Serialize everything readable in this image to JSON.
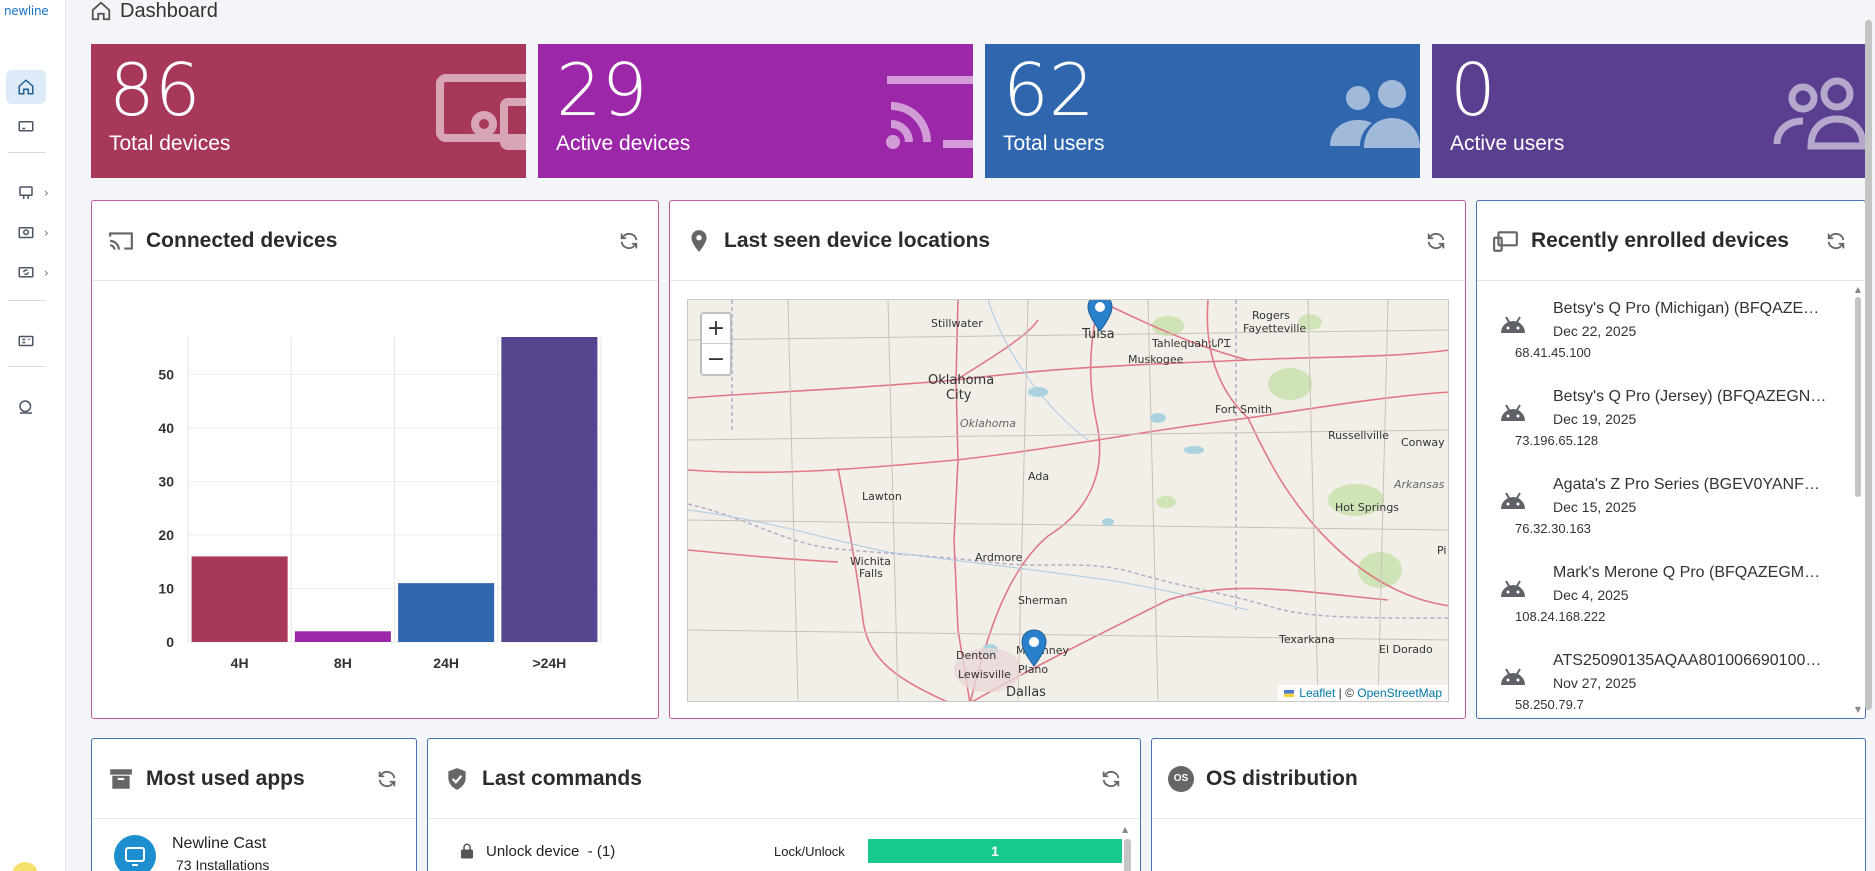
{
  "brand": {
    "logo_text": "newline"
  },
  "header": {
    "title": "Dashboard"
  },
  "kpis": [
    {
      "value": "86",
      "label": "Total devices",
      "color": "#a8385a",
      "icon": "display-screen-icon"
    },
    {
      "value": "29",
      "label": "Active devices",
      "color": "#9c27a8",
      "icon": "cast-icon"
    },
    {
      "value": "62",
      "label": "Total users",
      "color": "#2f66ae",
      "icon": "users-icon"
    },
    {
      "value": "0",
      "label": "Active users",
      "color": "#5a3f91",
      "icon": "users-outline-icon"
    }
  ],
  "connected": {
    "title": "Connected devices",
    "chart_data": {
      "type": "bar",
      "categories": [
        "4H",
        "8H",
        "24H",
        ">24H"
      ],
      "values": [
        16,
        2,
        11,
        57
      ],
      "colors": [
        "#a8385a",
        "#9c27a8",
        "#2f66ae",
        "#57448e"
      ],
      "yticks": [
        0,
        10,
        20,
        30,
        40,
        50
      ],
      "ylim": [
        0,
        57
      ],
      "grid": true,
      "title": "",
      "xlabel": "",
      "ylabel": ""
    }
  },
  "map": {
    "title": "Last seen device locations",
    "zoom_in": "+",
    "zoom_out": "−",
    "attrib_leaflet": "Leaflet",
    "attrib_sep": "| ©",
    "attrib_osm": "OpenStreetMap",
    "cities": {
      "stillwater": "Stillwater",
      "tulsa": "Tulsa",
      "rogers": "Rogers",
      "fayetteville": "Fayetteville",
      "tahlequah": "Tahlequah;ᏓᎵᏆ",
      "muskogee": "Muskogee",
      "okc1": "Oklahoma",
      "okc2": "City",
      "oklahoma": "Oklahoma",
      "fortsmith": "Fort Smith",
      "russellville": "Russellville",
      "conway": "Conway",
      "ada": "Ada",
      "lawton": "Lawton",
      "arkansas": "Arkansas",
      "hotsprings": "Hot Springs",
      "wichita1": "Wichita",
      "wichita2": "Falls",
      "ardmore": "Ardmore",
      "pi": "Pi",
      "sherman": "Sherman",
      "texarkana": "Texarkana",
      "eldorado": "El Dorado",
      "denton": "Denton",
      "mckinney": "McKinney",
      "lewisville": "Lewisville",
      "plano": "Plano",
      "dallas": "Dallas"
    }
  },
  "enrolled": {
    "title": "Recently enrolled devices",
    "devices": [
      {
        "name": "Betsy's Q Pro (Michigan) (BFQAZE…",
        "date": "Dec 22, 2025",
        "ip": "68.41.45.100"
      },
      {
        "name": "Betsy's Q Pro (Jersey) (BFQAZEGN…",
        "date": "Dec 19, 2025",
        "ip": "73.196.65.128"
      },
      {
        "name": "Agata's Z Pro Series (BGEV0YANF…",
        "date": "Dec 15, 2025",
        "ip": "76.32.30.163"
      },
      {
        "name": "Mark's Merone Q Pro (BFQAZEGM…",
        "date": "Dec 4, 2025",
        "ip": "108.24.168.222"
      },
      {
        "name": "ATS25090135AQAA801006690100…",
        "date": "Nov 27, 2025",
        "ip": "58.250.79.7"
      }
    ]
  },
  "apps": {
    "title": "Most used apps",
    "items": [
      {
        "name": "Newline Cast",
        "installs": "73 Installations"
      }
    ]
  },
  "commands": {
    "title": "Last commands",
    "items": [
      {
        "name": "Unlock device",
        "count": "- (1)",
        "type": "Lock/Unlock",
        "value": "1"
      }
    ]
  },
  "os": {
    "title": "OS distribution",
    "badge": "OS"
  }
}
